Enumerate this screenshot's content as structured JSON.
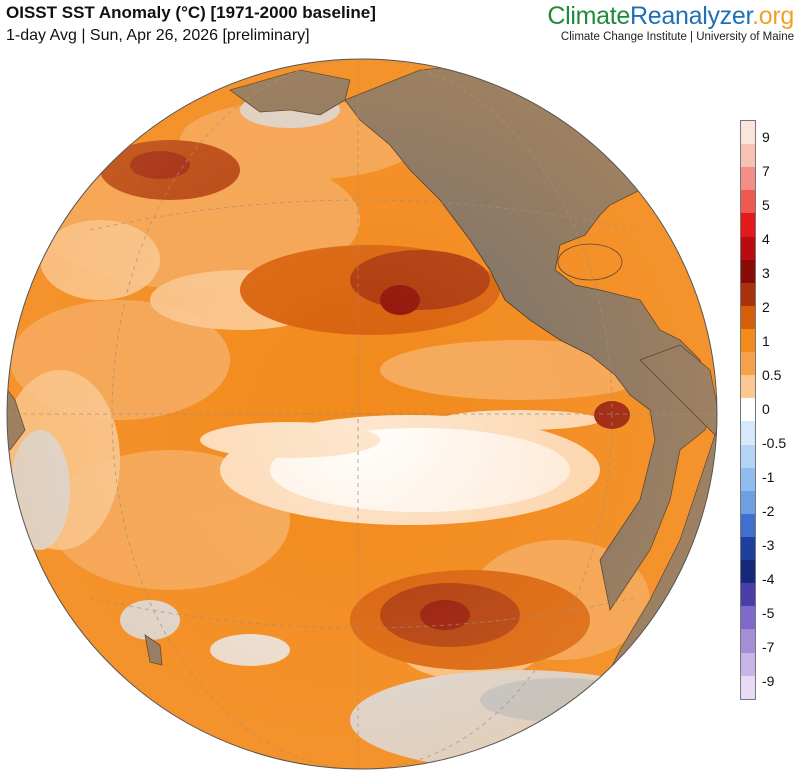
{
  "header": {
    "title": "OISST SST Anomaly (°C) [1971-2000 baseline]",
    "subtitle": "1-day Avg | Sun, Apr 26, 2026 [preliminary]",
    "brand_part1": "Climate",
    "brand_part2": "Reanalyzer",
    "brand_part3": ".org",
    "credit": "Climate Change Institute | University of Maine"
  },
  "legend": {
    "labels": [
      "9",
      "7",
      "5",
      "4",
      "3",
      "2",
      "1",
      "0.5",
      "0",
      "-0.5",
      "-1",
      "-2",
      "-3",
      "-4",
      "-5",
      "-7",
      "-9"
    ],
    "colors": [
      "#fbe4dc",
      "#f7c2b4",
      "#f38e86",
      "#ee5a52",
      "#e31a1c",
      "#b80c10",
      "#8a0a08",
      "#a8320c",
      "#d65f0c",
      "#f28a1c",
      "#f7a24a",
      "#fbc891",
      "#ffffff",
      "#d6e8fa",
      "#b3d4f5",
      "#8fbdf0",
      "#6d9fe3",
      "#3f6fcf",
      "#1f3f9e",
      "#15287a",
      "#4a3fa8",
      "#7f6acb",
      "#a48ed8",
      "#c8b4e6",
      "#e7daf2"
    ]
  },
  "map": {
    "projection": "orthographic",
    "land_color": "#6e6e6e",
    "ocean_warm_color": "#f28a1c",
    "ocean_hot_color": "#8a0a08",
    "ocean_neutral_color": "#ffffff",
    "ocean_cool_color": "#b3d4f5"
  }
}
